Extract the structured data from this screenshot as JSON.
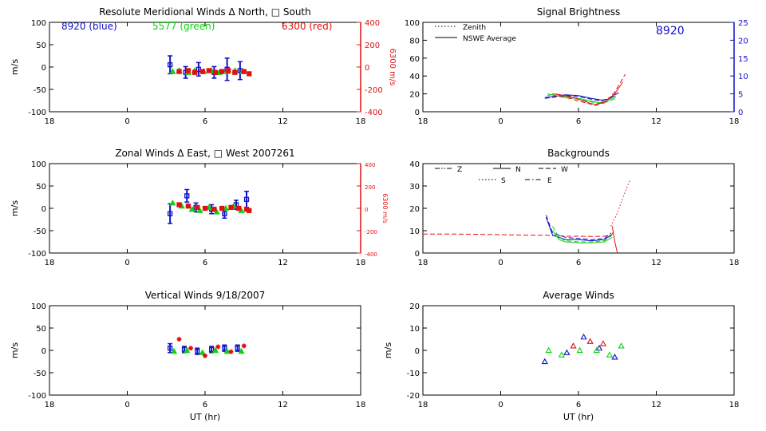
{
  "colors": {
    "blue": "#1010c8",
    "green": "#10d010",
    "red": "#e01010",
    "axis": "#000000"
  },
  "x_axis": {
    "xlim": [
      18,
      42
    ],
    "tick_values": [
      18,
      24,
      30,
      36,
      42
    ],
    "tick_labels": [
      "18",
      "0",
      "6",
      "12",
      "18"
    ],
    "xlabel": "UT (hr)"
  },
  "chart_data": [
    {
      "id": "meridional",
      "type": "scatter",
      "title": "Resolute Meridional Winds Δ North, □ South",
      "ylabel": "m/s",
      "ylim": [
        -100,
        100
      ],
      "yticks": [
        -100,
        -50,
        0,
        50,
        100
      ],
      "y2label": "6300 m/s",
      "y2lim": [
        -400,
        400
      ],
      "y2ticks": [
        -400,
        -200,
        0,
        200,
        400
      ],
      "site_labels": {
        "blue": "8920 (blue)",
        "green": "5577 (green)",
        "red": "6300 (red)"
      },
      "series": [
        {
          "name": "8920 (blue)",
          "color": "blue",
          "marker": "square",
          "errorbars": true,
          "x": [
            27.3,
            28.5,
            29.5,
            30.7,
            31.7,
            32.7
          ],
          "y": [
            5,
            -12,
            -5,
            -12,
            -5,
            -8
          ],
          "err": [
            20,
            13,
            15,
            13,
            25,
            20
          ]
        },
        {
          "name": "5577 (green)",
          "color": "green",
          "marker": "triangle",
          "x": [
            27.5,
            28.0,
            28.7,
            29.2,
            29.9,
            30.5,
            31.1,
            31.7,
            32.3,
            32.9
          ],
          "y": [
            -10,
            -8,
            -12,
            -8,
            -10,
            -8,
            -12,
            -10,
            -8,
            -10
          ]
        },
        {
          "name": "6300 (red)",
          "color": "red",
          "marker": "square",
          "x": [
            28.0,
            28.7,
            29.2,
            29.8,
            30.3,
            30.8,
            31.3,
            31.8,
            32.3,
            33.0,
            33.4
          ],
          "y": [
            -10,
            -8,
            -12,
            -10,
            -8,
            -12,
            -10,
            -8,
            -12,
            -10,
            -15
          ]
        }
      ]
    },
    {
      "id": "brightness",
      "type": "line",
      "title": "Signal Brightness",
      "ylim": [
        0,
        100
      ],
      "yticks": [
        0,
        20,
        40,
        60,
        80,
        100
      ],
      "y2lim": [
        0,
        25
      ],
      "y2ticks": [
        0,
        5,
        10,
        15,
        20,
        25
      ],
      "legend": [
        {
          "label": "Zenith",
          "style": "dotted"
        },
        {
          "label": "NSWE Average",
          "style": "solid"
        }
      ],
      "annotation": "8920",
      "series": [
        {
          "color": "blue",
          "style": "solid",
          "x": [
            27.4,
            28,
            29,
            30,
            31,
            31.8,
            32.3,
            32.8
          ],
          "y": [
            16,
            17,
            19,
            18,
            15,
            13,
            14,
            18
          ]
        },
        {
          "color": "blue",
          "style": "dashed",
          "x": [
            27.4,
            28,
            29,
            30,
            31,
            31.8,
            32.3,
            33.2
          ],
          "y": [
            15,
            16,
            18,
            17,
            14,
            12,
            15,
            22
          ]
        },
        {
          "color": "green",
          "style": "solid",
          "x": [
            27.6,
            28.3,
            29,
            30,
            31,
            31.6,
            32.2,
            32.9
          ],
          "y": [
            18,
            20,
            17,
            15,
            12,
            10,
            12,
            17
          ]
        },
        {
          "color": "green",
          "style": "dashed",
          "x": [
            27.6,
            28.3,
            29,
            30,
            31,
            31.6,
            32.2,
            32.9
          ],
          "y": [
            20,
            18,
            16,
            14,
            11,
            9,
            11,
            15
          ]
        },
        {
          "color": "red",
          "style": "solid",
          "x": [
            28,
            28.6,
            29.3,
            30,
            30.8,
            31.3,
            32,
            32.8,
            33.4
          ],
          "y": [
            20,
            19,
            17,
            14,
            10,
            8,
            11,
            20,
            33
          ]
        },
        {
          "color": "red",
          "style": "dashed",
          "x": [
            28,
            28.6,
            29.3,
            30,
            30.8,
            31.3,
            32,
            32.8,
            33.6
          ],
          "y": [
            18,
            17,
            15,
            12,
            9,
            7,
            10,
            22,
            42
          ]
        }
      ]
    },
    {
      "id": "zonal",
      "type": "scatter",
      "title": "Zonal Winds Δ East, □ West 2007261",
      "ylabel": "m/s",
      "ylim": [
        -100,
        100
      ],
      "yticks": [
        -100,
        -50,
        0,
        50,
        100
      ],
      "y2label": "6300 m/s",
      "y2lim": [
        -400,
        400
      ],
      "y2ticks": [
        -400,
        -200,
        0,
        200,
        400
      ],
      "series": [
        {
          "name": "8920 (blue)",
          "color": "blue",
          "marker": "square",
          "errorbars": true,
          "x": [
            27.3,
            28.6,
            29.3,
            30.5,
            31.5,
            32.4,
            33.2
          ],
          "y": [
            -12,
            28,
            2,
            -2,
            -12,
            8,
            20
          ],
          "err": [
            22,
            14,
            10,
            10,
            10,
            10,
            18
          ]
        },
        {
          "name": "5577 (green)",
          "color": "green",
          "marker": "triangle",
          "x": [
            27.5,
            28.2,
            29.0,
            29.6,
            30.3,
            30.9,
            31.6,
            32.2,
            32.8
          ],
          "y": [
            12,
            5,
            -2,
            -5,
            2,
            -8,
            0,
            5,
            -5
          ]
        },
        {
          "name": "6300 (red)",
          "color": "red",
          "marker": "square",
          "x": [
            28.0,
            28.7,
            29.4,
            30.0,
            30.7,
            31.3,
            32.0,
            32.6,
            33.2,
            33.4
          ],
          "y": [
            8,
            5,
            2,
            0,
            -2,
            0,
            2,
            0,
            -2,
            -5
          ]
        }
      ]
    },
    {
      "id": "backgrounds",
      "type": "line",
      "title": "Backgrounds",
      "ylim": [
        0,
        40
      ],
      "yticks": [
        0,
        10,
        20,
        30,
        40
      ],
      "legend": [
        {
          "label": "Z",
          "style": "dashdotdot"
        },
        {
          "label": "N",
          "style": "solid"
        },
        {
          "label": "W",
          "style": "dashed"
        },
        {
          "label": "S",
          "style": "dotted"
        },
        {
          "label": "E",
          "style": "dashdot"
        }
      ],
      "series": [
        {
          "color": "red",
          "style": "dashed",
          "x": [
            18,
            20,
            22,
            24,
            26,
            27.5,
            28,
            29,
            30,
            31,
            32,
            32.5,
            32.8
          ],
          "y": [
            8.5,
            8.5,
            8.4,
            8.2,
            8,
            8,
            7.8,
            7.5,
            7.5,
            7.4,
            7.5,
            8,
            10
          ]
        },
        {
          "color": "red",
          "style": "dotted",
          "x": [
            32.5,
            33,
            33.5,
            34.0
          ],
          "y": [
            12,
            18,
            26,
            33
          ]
        },
        {
          "color": "red",
          "style": "solid",
          "x": [
            32.6,
            32.8,
            33
          ],
          "y": [
            12,
            5,
            0
          ]
        },
        {
          "color": "blue",
          "style": "solid",
          "x": [
            27.5,
            28,
            29,
            30,
            31,
            32,
            32.5
          ],
          "y": [
            16,
            8,
            6,
            6,
            5.5,
            6,
            8
          ]
        },
        {
          "color": "blue",
          "style": "dashed",
          "x": [
            27.5,
            28,
            29,
            30,
            31,
            32,
            32.5
          ],
          "y": [
            17,
            9,
            7,
            6.5,
            6,
            6.5,
            9
          ]
        },
        {
          "color": "green",
          "style": "solid",
          "x": [
            28,
            28.5,
            29,
            30,
            31,
            32,
            32.6
          ],
          "y": [
            10,
            6,
            5,
            4.5,
            4.5,
            5,
            7
          ]
        },
        {
          "color": "green",
          "style": "dashed",
          "x": [
            28,
            28.5,
            29,
            30,
            31,
            32,
            32.6
          ],
          "y": [
            12,
            7,
            5.5,
            5,
            5,
            5.5,
            8
          ]
        }
      ]
    },
    {
      "id": "vertical",
      "type": "scatter",
      "title": "Vertical Winds 9/18/2007",
      "ylabel": "m/s",
      "ylim": [
        -100,
        100
      ],
      "yticks": [
        -100,
        -50,
        0,
        50,
        100
      ],
      "series": [
        {
          "name": "8920 (blue)",
          "color": "blue",
          "marker": "square",
          "errorbars": true,
          "x": [
            27.3,
            28.4,
            29.4,
            30.5,
            31.5,
            32.5
          ],
          "y": [
            5,
            2,
            -2,
            2,
            5,
            5
          ],
          "err": [
            10,
            7,
            7,
            7,
            7,
            7
          ]
        },
        {
          "name": "5577 (green)",
          "color": "green",
          "marker": "triangle",
          "x": [
            27.6,
            28.6,
            29.8,
            30.8,
            31.7,
            32.8
          ],
          "y": [
            -2,
            0,
            -5,
            0,
            -2,
            -2
          ]
        },
        {
          "name": "6300 (red)",
          "color": "red",
          "marker": "star",
          "x": [
            28.0,
            28.9,
            30.0,
            31.0,
            32.0,
            33.0
          ],
          "y": [
            25,
            5,
            -12,
            8,
            -3,
            10
          ]
        }
      ]
    },
    {
      "id": "average",
      "type": "scatter",
      "title": "Average Winds",
      "ylabel": "m/s",
      "ylim": [
        -20,
        20
      ],
      "yticks": [
        -20,
        -10,
        0,
        10,
        20
      ],
      "series": [
        {
          "name": "8920 (blue)",
          "color": "blue",
          "marker": "triangle",
          "x": [
            27.4,
            29.1,
            30.4,
            31.6,
            32.8
          ],
          "y": [
            -5,
            -1,
            6,
            1,
            -3
          ]
        },
        {
          "name": "5577 (green)",
          "color": "green",
          "marker": "triangle",
          "x": [
            27.7,
            28.7,
            30.1,
            31.4,
            32.4,
            33.3
          ],
          "y": [
            0,
            -2,
            0,
            0,
            -2,
            2
          ]
        },
        {
          "name": "6300 (red)",
          "color": "red",
          "marker": "triangle",
          "x": [
            29.6,
            30.9,
            31.9
          ],
          "y": [
            2,
            4,
            3
          ]
        }
      ]
    }
  ]
}
